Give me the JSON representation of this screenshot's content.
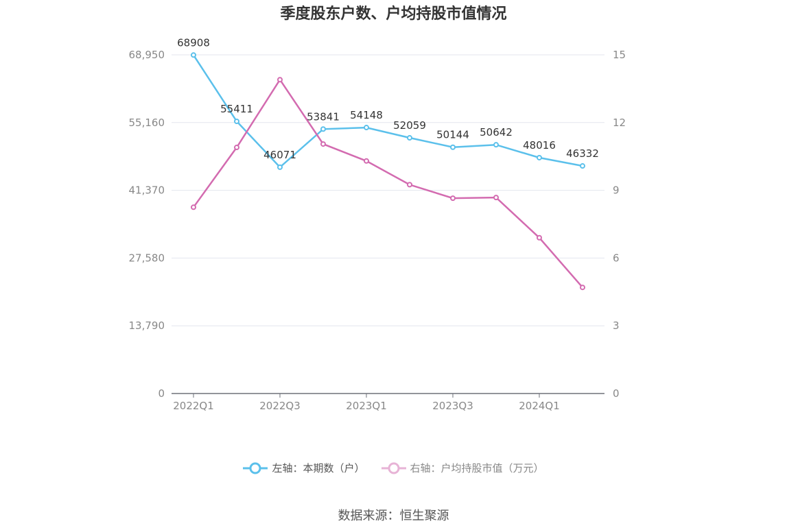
{
  "chart_data": {
    "type": "line",
    "title": "季度股东户数、户均持股市值情况",
    "x": [
      "2022Q1",
      "2022Q2",
      "2022Q3",
      "2022Q4",
      "2023Q1",
      "2023Q2",
      "2023Q3",
      "2023Q4",
      "2024Q1",
      "2024Q2"
    ],
    "x_tick_labels": [
      "2022Q1",
      "2022Q3",
      "2023Q1",
      "2023Q3",
      "2024Q1"
    ],
    "y_left": {
      "ticks": [
        "0",
        "13,790",
        "27,580",
        "41,370",
        "55,160",
        "68,950"
      ],
      "ylim": [
        0,
        68950
      ]
    },
    "y_right": {
      "ticks": [
        "0",
        "3",
        "6",
        "9",
        "12",
        "15"
      ],
      "ylim": [
        0,
        15
      ]
    },
    "series": [
      {
        "name": "左轴：本期数（户）",
        "axis": "left",
        "color": "#5bc0eb",
        "values": [
          68908,
          55411,
          46071,
          53841,
          54148,
          52059,
          50144,
          50642,
          48016,
          46332
        ],
        "labels": [
          "68908",
          "55411",
          "46071",
          "53841",
          "54148",
          "52059",
          "50144",
          "50642",
          "48016",
          "46332"
        ]
      },
      {
        "name": "右轴：户均持股市值（万元）",
        "axis": "right",
        "color": "#d36bb0",
        "values": [
          8.25,
          10.9,
          13.9,
          11.05,
          10.3,
          9.25,
          8.65,
          8.68,
          6.9,
          4.7
        ]
      }
    ],
    "grid": true,
    "legend_position": "bottom"
  },
  "source": "数据来源：恒生聚源"
}
